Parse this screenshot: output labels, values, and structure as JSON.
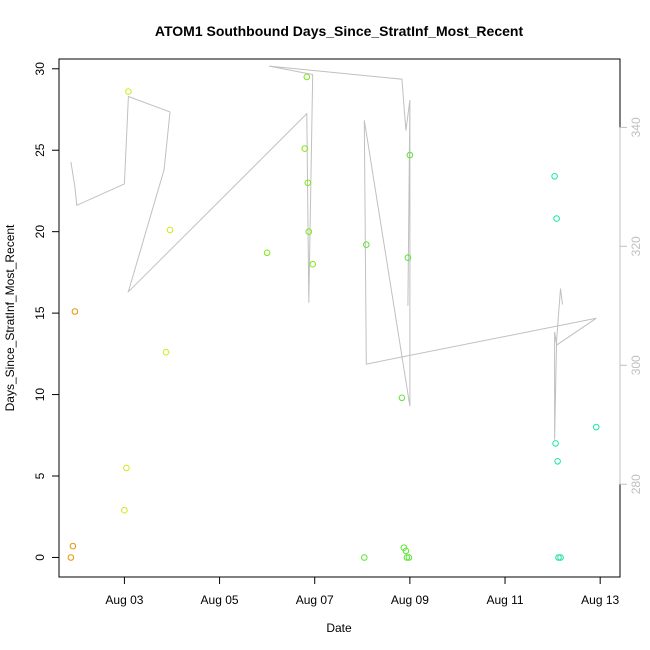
{
  "chart_data": {
    "type": "scatter",
    "title": "ATOM1 Southbound Days_Since_StratInf_Most_Recent",
    "xlabel": "Date",
    "ylabel": "Days_Since_StratInf_Most_Recent",
    "xlim": [
      "2023-08-01T15:00",
      "2023-08-13T10:00"
    ],
    "ylim": [
      -1.2,
      30.6
    ],
    "x_ticks": [
      {
        "date": "2023-08-03T00:00",
        "label": "Aug 03"
      },
      {
        "date": "2023-08-05T00:00",
        "label": "Aug 05"
      },
      {
        "date": "2023-08-07T00:00",
        "label": "Aug 07"
      },
      {
        "date": "2023-08-09T00:00",
        "label": "Aug 09"
      },
      {
        "date": "2023-08-11T00:00",
        "label": "Aug 11"
      },
      {
        "date": "2023-08-13T00:00",
        "label": "Aug 13"
      }
    ],
    "y_ticks": [
      0,
      5,
      10,
      15,
      20,
      25,
      30
    ],
    "secondary_axis": {
      "side": "right",
      "color": "#c0c0c0",
      "ticks": [
        280,
        300,
        320,
        340
      ],
      "range": [
        264.4,
        351.5
      ]
    },
    "grid": false,
    "points": [
      {
        "x": "2023-08-01T21:00",
        "y": 0.0,
        "color": "#e69500"
      },
      {
        "x": "2023-08-01T22:00",
        "y": 0.7,
        "color": "#e69500"
      },
      {
        "x": "2023-08-01T23:00",
        "y": 15.1,
        "color": "#e69500"
      },
      {
        "x": "2023-08-03T00:00",
        "y": 2.9,
        "color": "#d6e61a"
      },
      {
        "x": "2023-08-03T01:00",
        "y": 5.5,
        "color": "#d6e61a"
      },
      {
        "x": "2023-08-03T02:00",
        "y": 28.6,
        "color": "#d6e61a"
      },
      {
        "x": "2023-08-03T21:00",
        "y": 12.6,
        "color": "#d6e61a"
      },
      {
        "x": "2023-08-03T23:00",
        "y": 20.1,
        "color": "#d6e61a"
      },
      {
        "x": "2023-08-06T00:00",
        "y": 18.7,
        "color": "#80e61a"
      },
      {
        "x": "2023-08-06T19:00",
        "y": 25.1,
        "color": "#80e61a"
      },
      {
        "x": "2023-08-06T20:00",
        "y": 29.5,
        "color": "#80e61a"
      },
      {
        "x": "2023-08-06T20:30",
        "y": 23.0,
        "color": "#80e61a"
      },
      {
        "x": "2023-08-06T21:00",
        "y": 20.0,
        "color": "#80e61a"
      },
      {
        "x": "2023-08-06T23:00",
        "y": 18.0,
        "color": "#80e61a"
      },
      {
        "x": "2023-08-08T01:00",
        "y": 0.0,
        "color": "#5ae633"
      },
      {
        "x": "2023-08-08T02:00",
        "y": 19.2,
        "color": "#5ae633"
      },
      {
        "x": "2023-08-08T20:00",
        "y": 9.8,
        "color": "#5ae633"
      },
      {
        "x": "2023-08-08T21:00",
        "y": 0.6,
        "color": "#5ae633"
      },
      {
        "x": "2023-08-08T22:00",
        "y": 0.4,
        "color": "#5ae633"
      },
      {
        "x": "2023-08-08T22:30",
        "y": 0.0,
        "color": "#5ae633"
      },
      {
        "x": "2023-08-08T23:00",
        "y": 18.4,
        "color": "#5ae633"
      },
      {
        "x": "2023-08-08T23:30",
        "y": 0.0,
        "color": "#5ae633"
      },
      {
        "x": "2023-08-09T00:00",
        "y": 24.7,
        "color": "#5ae633"
      },
      {
        "x": "2023-08-12T01:00",
        "y": 23.4,
        "color": "#1ae6a0"
      },
      {
        "x": "2023-08-12T01:30",
        "y": 7.0,
        "color": "#1ae6a0"
      },
      {
        "x": "2023-08-12T02:00",
        "y": 20.8,
        "color": "#1ae6a0"
      },
      {
        "x": "2023-08-12T02:30",
        "y": 5.9,
        "color": "#1ae6a0"
      },
      {
        "x": "2023-08-12T03:00",
        "y": 0.0,
        "color": "#1ae6a0"
      },
      {
        "x": "2023-08-12T04:00",
        "y": 0.0,
        "color": "#1ae6a0"
      },
      {
        "x": "2023-08-12T22:00",
        "y": 8.0,
        "color": "#1ae6a0"
      }
    ],
    "line_series": {
      "color": "#c0c0c0",
      "axis": "right",
      "points": [
        {
          "x": "2023-08-01T21:00",
          "y": 334.2
        },
        {
          "x": "2023-08-01T23:00",
          "y": 330.0
        },
        {
          "x": "2023-08-02T00:00",
          "y": 326.9
        },
        {
          "x": "2023-08-03T00:00",
          "y": 330.5
        },
        {
          "x": "2023-08-03T02:00",
          "y": 345.2
        },
        {
          "x": "2023-08-03T23:00",
          "y": 342.6
        },
        {
          "x": "2023-08-03T20:00",
          "y": 332.9
        },
        {
          "x": "2023-08-03T02:00",
          "y": 312.4
        },
        {
          "x": "2023-08-03T03:00",
          "y": 312.7
        },
        {
          "x": "2023-08-06T20:00",
          "y": 342.3
        },
        {
          "x": "2023-08-06T21:00",
          "y": 310.5
        },
        {
          "x": "2023-08-06T23:00",
          "y": 348.9
        },
        {
          "x": "2023-08-06T01:00",
          "y": 350.3
        },
        {
          "x": "2023-08-08T20:00",
          "y": 348.1
        },
        {
          "x": "2023-08-08T22:00",
          "y": 339.5
        },
        {
          "x": "2023-08-09T00:00",
          "y": 344.6
        },
        {
          "x": "2023-08-08T23:00",
          "y": 310.0
        },
        {
          "x": "2023-08-09T00:00",
          "y": 343.3
        },
        {
          "x": "2023-08-09T00:00",
          "y": 293.1
        },
        {
          "x": "2023-08-08T01:00",
          "y": 341.2
        },
        {
          "x": "2023-08-08T02:00",
          "y": 300.2
        },
        {
          "x": "2023-08-12T22:00",
          "y": 307.9
        },
        {
          "x": "2023-08-12T02:00",
          "y": 303.4
        },
        {
          "x": "2023-08-12T01:00",
          "y": 305.6
        },
        {
          "x": "2023-08-12T01:00",
          "y": 287.5
        },
        {
          "x": "2023-08-12T02:00",
          "y": 304.2
        },
        {
          "x": "2023-08-12T04:00",
          "y": 312.9
        },
        {
          "x": "2023-08-12T05:00",
          "y": 310.2
        }
      ]
    }
  }
}
